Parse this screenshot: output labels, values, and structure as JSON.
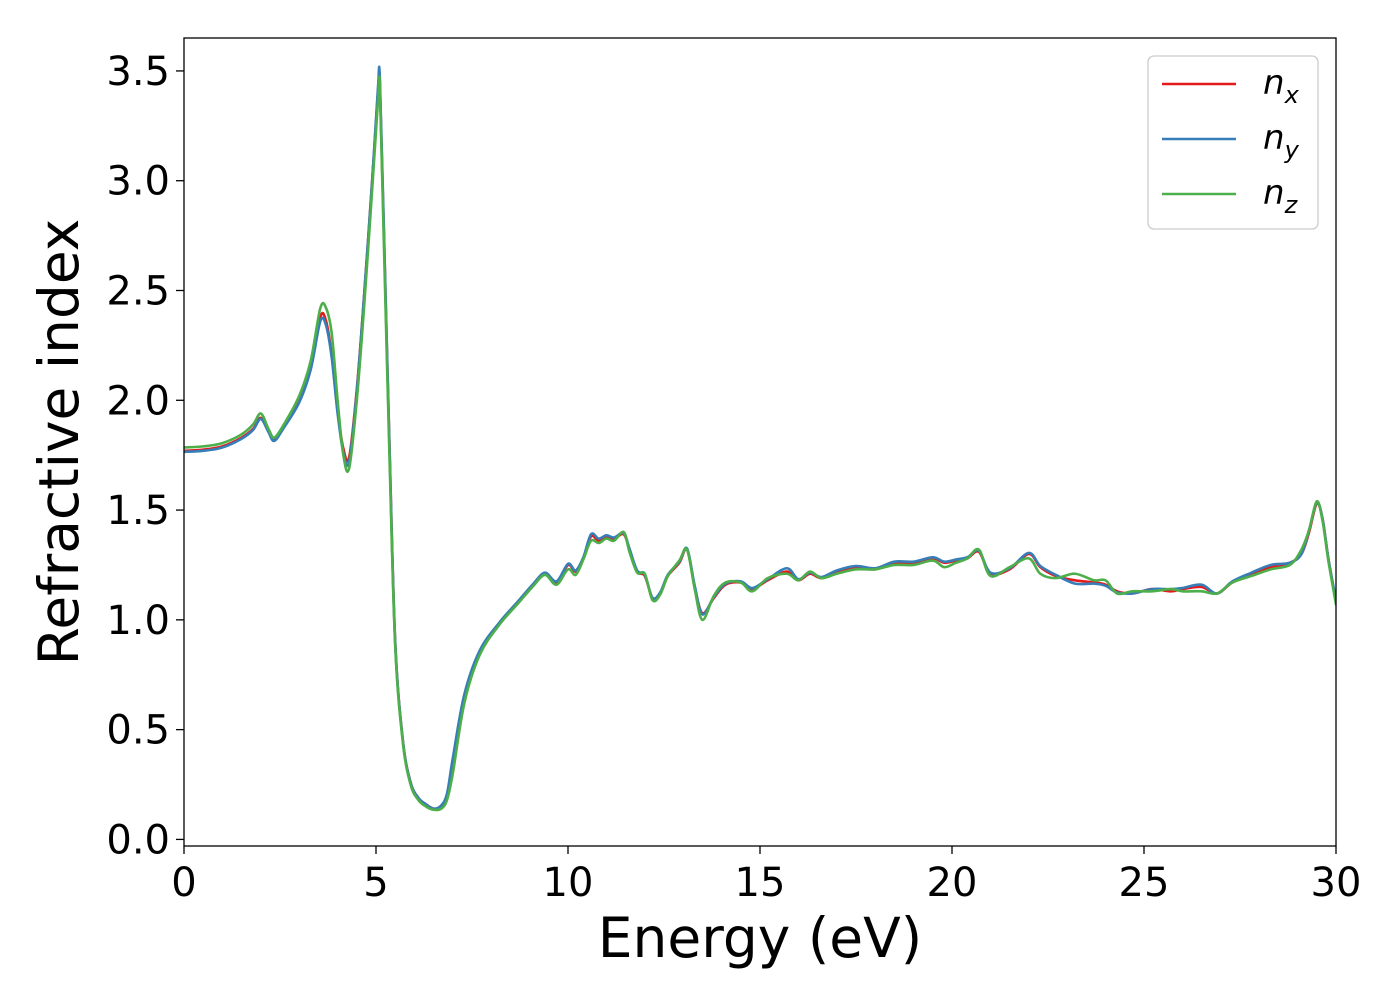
{
  "chart_data": {
    "type": "line",
    "title": "",
    "xlabel": "Energy (eV)",
    "ylabel": "Refractive index",
    "xlim": [
      0,
      30
    ],
    "ylim": [
      -0.03,
      3.65
    ],
    "xticks": [
      0,
      5,
      10,
      15,
      20,
      25,
      30
    ],
    "yticks": [
      0.0,
      0.5,
      1.0,
      1.5,
      2.0,
      2.5,
      3.0,
      3.5
    ],
    "xtick_labels": [
      "0",
      "5",
      "10",
      "15",
      "20",
      "25",
      "30"
    ],
    "ytick_labels": [
      "0.0",
      "0.5",
      "1.0",
      "1.5",
      "2.0",
      "2.5",
      "3.0",
      "3.5"
    ],
    "grid": false,
    "legend_position": "top-right",
    "series": [
      {
        "name": "n_x",
        "label_base": "n",
        "label_sub": "x",
        "color": "#e41a1c",
        "x": [
          0,
          0.5,
          1.0,
          1.5,
          1.8,
          2.0,
          2.2,
          2.35,
          2.6,
          3.0,
          3.3,
          3.55,
          3.7,
          3.85,
          4.0,
          4.15,
          4.3,
          4.5,
          4.7,
          4.9,
          5.05,
          5.1,
          5.2,
          5.35,
          5.5,
          5.7,
          5.9,
          6.1,
          6.3,
          6.5,
          6.7,
          6.85,
          7.0,
          7.3,
          7.7,
          8.2,
          8.7,
          9.1,
          9.4,
          9.7,
          10.0,
          10.2,
          10.4,
          10.6,
          10.8,
          11.0,
          11.2,
          11.45,
          11.6,
          11.8,
          12.0,
          12.2,
          12.4,
          12.6,
          12.9,
          13.1,
          13.3,
          13.5,
          13.8,
          14.1,
          14.5,
          14.8,
          15.2,
          15.7,
          16.0,
          16.3,
          16.6,
          17.0,
          17.5,
          18.0,
          18.5,
          19.0,
          19.5,
          19.8,
          20.1,
          20.4,
          20.7,
          21.0,
          21.5,
          22.0,
          22.3,
          22.7,
          23.2,
          23.7,
          24.0,
          24.3,
          24.7,
          25.2,
          25.7,
          26.0,
          26.5,
          26.9,
          27.3,
          27.8,
          28.3,
          28.8,
          29.1,
          29.3,
          29.5,
          29.65,
          29.8,
          30.0
        ],
        "y": [
          1.77,
          1.775,
          1.79,
          1.83,
          1.87,
          1.92,
          1.86,
          1.82,
          1.88,
          2.0,
          2.15,
          2.38,
          2.36,
          2.2,
          1.95,
          1.78,
          1.74,
          2.05,
          2.5,
          3.0,
          3.4,
          3.45,
          2.8,
          1.8,
          0.9,
          0.45,
          0.26,
          0.19,
          0.16,
          0.14,
          0.15,
          0.2,
          0.35,
          0.65,
          0.85,
          0.98,
          1.08,
          1.16,
          1.21,
          1.17,
          1.25,
          1.22,
          1.28,
          1.38,
          1.36,
          1.38,
          1.37,
          1.39,
          1.32,
          1.22,
          1.2,
          1.1,
          1.12,
          1.2,
          1.26,
          1.32,
          1.15,
          1.03,
          1.1,
          1.16,
          1.17,
          1.14,
          1.18,
          1.22,
          1.18,
          1.21,
          1.19,
          1.22,
          1.24,
          1.23,
          1.26,
          1.26,
          1.28,
          1.26,
          1.27,
          1.28,
          1.31,
          1.21,
          1.23,
          1.3,
          1.24,
          1.2,
          1.18,
          1.17,
          1.16,
          1.13,
          1.12,
          1.14,
          1.13,
          1.14,
          1.15,
          1.12,
          1.17,
          1.21,
          1.24,
          1.26,
          1.3,
          1.4,
          1.53,
          1.46,
          1.28,
          1.08
        ]
      },
      {
        "name": "n_y",
        "label_base": "n",
        "label_sub": "y",
        "color": "#377eb8",
        "x": [
          0,
          0.5,
          1.0,
          1.5,
          1.8,
          2.0,
          2.2,
          2.35,
          2.6,
          3.0,
          3.3,
          3.55,
          3.7,
          3.85,
          4.0,
          4.15,
          4.3,
          4.5,
          4.7,
          4.9,
          5.05,
          5.1,
          5.2,
          5.35,
          5.5,
          5.7,
          5.9,
          6.1,
          6.3,
          6.5,
          6.7,
          6.85,
          7.0,
          7.3,
          7.7,
          8.2,
          8.7,
          9.1,
          9.4,
          9.7,
          10.0,
          10.2,
          10.4,
          10.6,
          10.8,
          11.0,
          11.2,
          11.45,
          11.6,
          11.8,
          12.0,
          12.2,
          12.4,
          12.6,
          12.9,
          13.1,
          13.3,
          13.5,
          13.8,
          14.1,
          14.5,
          14.8,
          15.2,
          15.7,
          16.0,
          16.3,
          16.6,
          17.0,
          17.5,
          18.0,
          18.5,
          19.0,
          19.5,
          19.8,
          20.1,
          20.4,
          20.7,
          21.0,
          21.5,
          22.0,
          22.3,
          22.7,
          23.2,
          23.7,
          24.0,
          24.3,
          24.7,
          25.2,
          25.7,
          26.0,
          26.5,
          26.9,
          27.3,
          27.8,
          28.3,
          28.8,
          29.1,
          29.3,
          29.5,
          29.65,
          29.8,
          30.0
        ],
        "y": [
          1.765,
          1.77,
          1.785,
          1.825,
          1.865,
          1.915,
          1.855,
          1.815,
          1.875,
          1.99,
          2.14,
          2.36,
          2.34,
          2.19,
          1.94,
          1.76,
          1.72,
          2.04,
          2.5,
          3.0,
          3.42,
          3.47,
          2.82,
          1.8,
          0.9,
          0.45,
          0.26,
          0.19,
          0.16,
          0.14,
          0.155,
          0.21,
          0.37,
          0.66,
          0.86,
          0.985,
          1.085,
          1.165,
          1.215,
          1.175,
          1.255,
          1.225,
          1.285,
          1.39,
          1.37,
          1.385,
          1.375,
          1.395,
          1.325,
          1.225,
          1.205,
          1.1,
          1.125,
          1.205,
          1.265,
          1.325,
          1.155,
          1.025,
          1.105,
          1.165,
          1.175,
          1.145,
          1.185,
          1.235,
          1.185,
          1.215,
          1.195,
          1.225,
          1.245,
          1.235,
          1.265,
          1.265,
          1.285,
          1.265,
          1.275,
          1.285,
          1.315,
          1.215,
          1.235,
          1.305,
          1.245,
          1.205,
          1.165,
          1.165,
          1.155,
          1.125,
          1.12,
          1.14,
          1.14,
          1.145,
          1.16,
          1.12,
          1.175,
          1.215,
          1.25,
          1.26,
          1.3,
          1.41,
          1.535,
          1.46,
          1.28,
          1.09
        ]
      },
      {
        "name": "n_z",
        "label_base": "n",
        "label_sub": "z",
        "color": "#4daf4a",
        "x": [
          0,
          0.5,
          1.0,
          1.5,
          1.8,
          2.0,
          2.2,
          2.35,
          2.6,
          3.0,
          3.3,
          3.55,
          3.7,
          3.85,
          4.0,
          4.15,
          4.3,
          4.5,
          4.7,
          4.9,
          5.05,
          5.1,
          5.2,
          5.35,
          5.5,
          5.7,
          5.9,
          6.1,
          6.3,
          6.5,
          6.7,
          6.85,
          7.0,
          7.3,
          7.7,
          8.2,
          8.7,
          9.1,
          9.4,
          9.7,
          10.0,
          10.2,
          10.4,
          10.6,
          10.8,
          11.0,
          11.2,
          11.45,
          11.6,
          11.8,
          12.0,
          12.2,
          12.4,
          12.6,
          12.9,
          13.1,
          13.3,
          13.5,
          13.8,
          14.1,
          14.5,
          14.8,
          15.2,
          15.7,
          16.0,
          16.3,
          16.6,
          17.0,
          17.5,
          18.0,
          18.5,
          19.0,
          19.5,
          19.8,
          20.1,
          20.4,
          20.7,
          21.0,
          21.5,
          22.0,
          22.3,
          22.7,
          23.2,
          23.7,
          24.0,
          24.3,
          24.7,
          25.2,
          25.7,
          26.0,
          26.5,
          26.9,
          27.3,
          27.8,
          28.3,
          28.8,
          29.1,
          29.3,
          29.5,
          29.65,
          29.8,
          30.0
        ],
        "y": [
          1.785,
          1.79,
          1.805,
          1.845,
          1.89,
          1.94,
          1.87,
          1.83,
          1.89,
          2.02,
          2.18,
          2.42,
          2.42,
          2.3,
          2.0,
          1.75,
          1.69,
          2.0,
          2.45,
          2.96,
          3.36,
          3.43,
          2.75,
          1.75,
          0.88,
          0.44,
          0.25,
          0.18,
          0.15,
          0.135,
          0.14,
          0.18,
          0.3,
          0.62,
          0.84,
          0.975,
          1.075,
          1.155,
          1.205,
          1.16,
          1.23,
          1.205,
          1.275,
          1.36,
          1.35,
          1.37,
          1.36,
          1.4,
          1.31,
          1.215,
          1.21,
          1.09,
          1.115,
          1.2,
          1.27,
          1.32,
          1.14,
          1.0,
          1.11,
          1.17,
          1.17,
          1.13,
          1.19,
          1.21,
          1.18,
          1.22,
          1.19,
          1.21,
          1.23,
          1.23,
          1.25,
          1.25,
          1.27,
          1.24,
          1.26,
          1.28,
          1.32,
          1.2,
          1.24,
          1.28,
          1.21,
          1.19,
          1.21,
          1.18,
          1.18,
          1.12,
          1.13,
          1.13,
          1.14,
          1.13,
          1.13,
          1.12,
          1.17,
          1.2,
          1.23,
          1.25,
          1.32,
          1.41,
          1.54,
          1.45,
          1.27,
          1.07
        ]
      }
    ]
  }
}
